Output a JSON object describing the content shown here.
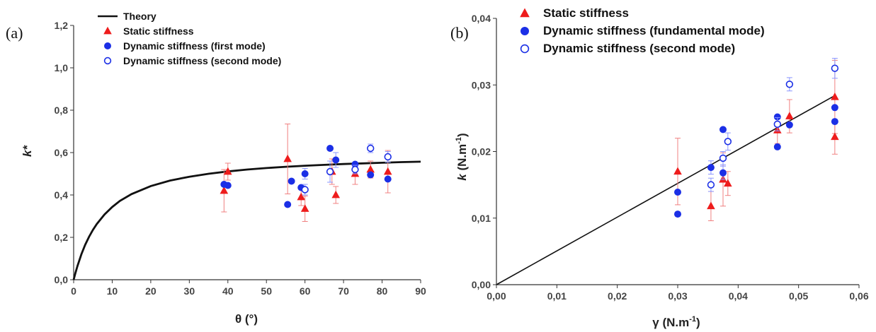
{
  "colors": {
    "theory": "#111111",
    "static": "#ee1c1c",
    "dynamic": "#1b2fe6",
    "axis": "#333333",
    "errStatic": "#f08080",
    "errDyn": "#8a96ff"
  },
  "chart_data": [
    {
      "panel_label": "(a)",
      "type": "scatter",
      "xlabel": "θ (°)",
      "ylabel": "k*",
      "xlim": [
        0,
        90
      ],
      "ylim": [
        0,
        1.2
      ],
      "x_ticks": [
        "0",
        "10",
        "20",
        "30",
        "40",
        "50",
        "60",
        "70",
        "80",
        "90"
      ],
      "x_tick_values": [
        0,
        10,
        20,
        30,
        40,
        50,
        60,
        70,
        80,
        90
      ],
      "y_ticks": [
        "0,0",
        "0,2",
        "0,4",
        "0,6",
        "0,8",
        "1,0",
        "1,2"
      ],
      "y_tick_values": [
        0,
        0.2,
        0.4,
        0.6,
        0.8,
        1.0,
        1.2
      ],
      "legend_position": "top-left",
      "series": [
        {
          "name": "Theory",
          "kind": "line",
          "x": [
            0,
            0.5,
            1,
            2,
            3,
            4,
            5,
            6,
            8,
            10,
            12,
            15,
            20,
            25,
            30,
            35,
            40,
            45,
            50,
            55,
            60,
            65,
            70,
            75,
            80,
            85,
            90
          ],
          "y": [
            0,
            0.034,
            0.065,
            0.12,
            0.165,
            0.203,
            0.235,
            0.263,
            0.308,
            0.343,
            0.372,
            0.404,
            0.442,
            0.468,
            0.486,
            0.5,
            0.511,
            0.52,
            0.527,
            0.533,
            0.538,
            0.542,
            0.546,
            0.549,
            0.552,
            0.555,
            0.557
          ]
        },
        {
          "name": "Static stiffness",
          "kind": "triangle",
          "points": [
            {
              "x": 39,
              "y": 0.42,
              "err": 0.1
            },
            {
              "x": 40,
              "y": 0.51,
              "err": 0.04
            },
            {
              "x": 55.5,
              "y": 0.57,
              "err": 0.165
            },
            {
              "x": 59,
              "y": 0.39,
              "err": 0.04
            },
            {
              "x": 60,
              "y": 0.335,
              "err": 0.06
            },
            {
              "x": 67,
              "y": 0.51,
              "err": 0.06
            },
            {
              "x": 68,
              "y": 0.4,
              "err": 0.04
            },
            {
              "x": 73,
              "y": 0.5,
              "err": 0.05
            },
            {
              "x": 77,
              "y": 0.52,
              "err": 0.04
            },
            {
              "x": 81.5,
              "y": 0.51,
              "err": 0.1
            }
          ]
        },
        {
          "name": "Dynamic stiffness (first mode)",
          "kind": "filled",
          "points": [
            {
              "x": 39,
              "y": 0.45,
              "err": 0
            },
            {
              "x": 40,
              "y": 0.445,
              "err": 0
            },
            {
              "x": 55.5,
              "y": 0.355,
              "err": 0
            },
            {
              "x": 56.5,
              "y": 0.465,
              "err": 0
            },
            {
              "x": 59,
              "y": 0.435,
              "err": 0
            },
            {
              "x": 60,
              "y": 0.5,
              "err": 0.025
            },
            {
              "x": 66.5,
              "y": 0.62,
              "err": 0
            },
            {
              "x": 68,
              "y": 0.565,
              "err": 0.035
            },
            {
              "x": 73,
              "y": 0.545,
              "err": 0
            },
            {
              "x": 77,
              "y": 0.495,
              "err": 0
            },
            {
              "x": 81.5,
              "y": 0.475,
              "err": 0
            }
          ]
        },
        {
          "name": "Dynamic stiffness (second mode)",
          "kind": "open",
          "points": [
            {
              "x": 60,
              "y": 0.425,
              "err": 0.025
            },
            {
              "x": 66.5,
              "y": 0.51,
              "err": 0.05
            },
            {
              "x": 73,
              "y": 0.52,
              "err": 0.02
            },
            {
              "x": 77,
              "y": 0.62,
              "err": 0.02
            },
            {
              "x": 81.5,
              "y": 0.58,
              "err": 0.025
            }
          ]
        }
      ]
    },
    {
      "panel_label": "(b)",
      "type": "scatter",
      "xlabel": "γ (N.m",
      "xlabel_sup": "-1",
      "xlabel_close": ")",
      "ylabel": "k",
      "ylabel_unit": " (N.m",
      "ylabel_sup": "-1",
      "ylabel_close": ")",
      "xlim": [
        0,
        0.06
      ],
      "ylim": [
        0,
        0.04
      ],
      "x_ticks": [
        "0,00",
        "0,01",
        "0,02",
        "0,03",
        "0,04",
        "0,05",
        "0,06"
      ],
      "x_tick_values": [
        0,
        0.01,
        0.02,
        0.03,
        0.04,
        0.05,
        0.06
      ],
      "y_ticks": [
        "0,00",
        "0,01",
        "0,02",
        "0,03",
        "0,04"
      ],
      "y_tick_values": [
        0,
        0.01,
        0.02,
        0.03,
        0.04
      ],
      "legend_position": "top-left",
      "series": [
        {
          "name": "",
          "kind": "line",
          "x": [
            0,
            0.056
          ],
          "y": [
            0,
            0.0284
          ]
        },
        {
          "name": "Static stiffness",
          "kind": "triangle",
          "points": [
            {
              "x": 0.03,
              "y": 0.017,
              "err": 0.005
            },
            {
              "x": 0.0355,
              "y": 0.0118,
              "err": 0.0022
            },
            {
              "x": 0.0375,
              "y": 0.0158,
              "err": 0.004
            },
            {
              "x": 0.0383,
              "y": 0.0152,
              "err": 0.0018
            },
            {
              "x": 0.0465,
              "y": 0.0232,
              "err": 0.002
            },
            {
              "x": 0.0485,
              "y": 0.0253,
              "err": 0.0025
            },
            {
              "x": 0.056,
              "y": 0.0282,
              "err": 0.0055
            },
            {
              "x": 0.056,
              "y": 0.0222,
              "err": 0.0026
            }
          ]
        },
        {
          "name": "Dynamic stiffness (fundamental mode)",
          "kind": "filled",
          "points": [
            {
              "x": 0.03,
              "y": 0.0106,
              "err": 0
            },
            {
              "x": 0.03,
              "y": 0.0139,
              "err": 0
            },
            {
              "x": 0.0355,
              "y": 0.0176,
              "err": 0.001
            },
            {
              "x": 0.0375,
              "y": 0.0233,
              "err": 0
            },
            {
              "x": 0.0375,
              "y": 0.0168,
              "err": 0.001
            },
            {
              "x": 0.0465,
              "y": 0.0252,
              "err": 0
            },
            {
              "x": 0.0465,
              "y": 0.0207,
              "err": 0
            },
            {
              "x": 0.0485,
              "y": 0.024,
              "err": 0
            },
            {
              "x": 0.056,
              "y": 0.0266,
              "err": 0
            },
            {
              "x": 0.056,
              "y": 0.0245,
              "err": 0
            }
          ]
        },
        {
          "name": "Dynamic stiffness (second mode)",
          "kind": "open",
          "points": [
            {
              "x": 0.0355,
              "y": 0.015,
              "err": 0.001
            },
            {
              "x": 0.0375,
              "y": 0.019,
              "err": 0.001
            },
            {
              "x": 0.0383,
              "y": 0.0215,
              "err": 0.0013
            },
            {
              "x": 0.0465,
              "y": 0.0241,
              "err": 0.001
            },
            {
              "x": 0.0485,
              "y": 0.0301,
              "err": 0.001
            },
            {
              "x": 0.056,
              "y": 0.0325,
              "err": 0.0015
            }
          ]
        }
      ]
    }
  ]
}
